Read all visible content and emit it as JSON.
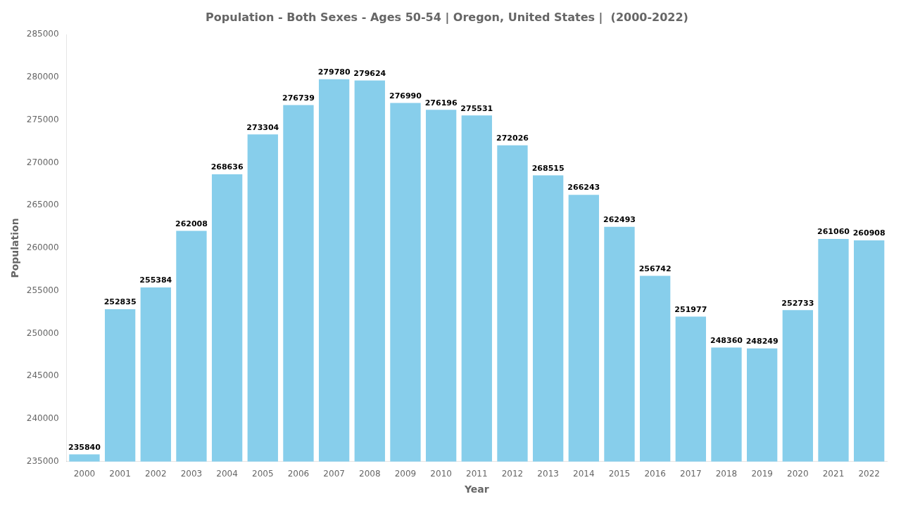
{
  "chart_data": {
    "type": "bar",
    "title": "Population - Both Sexes - Ages 50-54 | Oregon, United States |  (2000-2022)",
    "xlabel": "Year",
    "ylabel": "Population",
    "categories": [
      "2000",
      "2001",
      "2002",
      "2003",
      "2004",
      "2005",
      "2006",
      "2007",
      "2008",
      "2009",
      "2010",
      "2011",
      "2012",
      "2013",
      "2014",
      "2015",
      "2016",
      "2017",
      "2018",
      "2019",
      "2020",
      "2021",
      "2022"
    ],
    "values": [
      235840,
      252835,
      255384,
      262008,
      268636,
      273304,
      276739,
      279780,
      279624,
      276990,
      276196,
      275531,
      272026,
      268515,
      266243,
      262493,
      256742,
      251977,
      248360,
      248249,
      252733,
      261060,
      260908
    ],
    "color": "#87CEEB",
    "ylim": [
      235000,
      285000
    ],
    "yticks": [
      235000,
      240000,
      245000,
      250000,
      255000,
      260000,
      265000,
      270000,
      275000,
      280000,
      285000
    ],
    "grid": false,
    "data_labels": true
  }
}
